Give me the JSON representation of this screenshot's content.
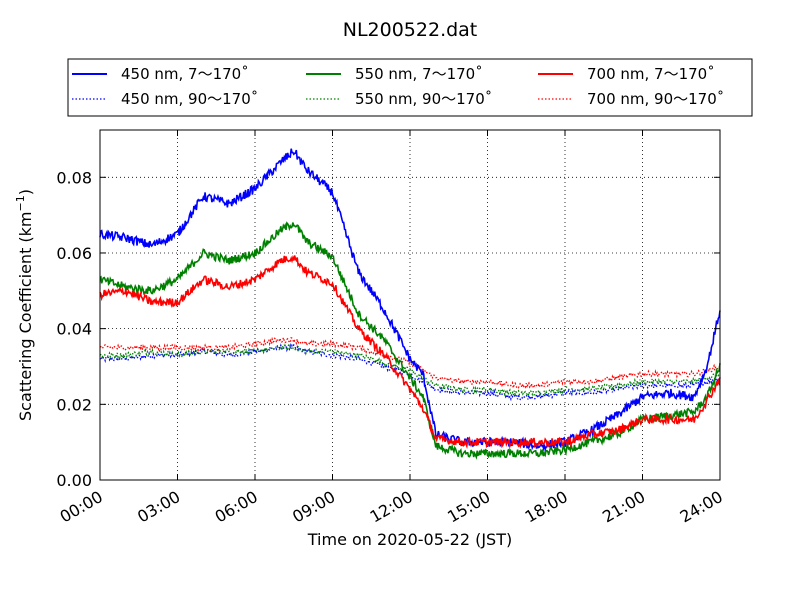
{
  "chart_data": {
    "type": "line",
    "title": "NL200522.dat",
    "xlabel": "Time on 2020-05-22 (JST)",
    "ylabel": "Scattering Coefficient (km",
    "ylabel_sup": "−1",
    "ylabel_close": ")",
    "xlim_hours": [
      0,
      24
    ],
    "ylim": [
      0,
      0.0925
    ],
    "x_ticks": [
      {
        "hour": 0,
        "label": "00:00"
      },
      {
        "hour": 3,
        "label": "03:00"
      },
      {
        "hour": 6,
        "label": "06:00"
      },
      {
        "hour": 9,
        "label": "09:00"
      },
      {
        "hour": 12,
        "label": "12:00"
      },
      {
        "hour": 15,
        "label": "15:00"
      },
      {
        "hour": 18,
        "label": "18:00"
      },
      {
        "hour": 21,
        "label": "21:00"
      },
      {
        "hour": 24,
        "label": "24:00"
      }
    ],
    "y_ticks": [
      {
        "value": 0.0,
        "label": "0.00"
      },
      {
        "value": 0.02,
        "label": "0.02"
      },
      {
        "value": 0.04,
        "label": "0.04"
      },
      {
        "value": 0.06,
        "label": "0.06"
      },
      {
        "value": 0.08,
        "label": "0.08"
      }
    ],
    "grid": true,
    "legend_position": "top",
    "x_hours": [
      0,
      1,
      2,
      3,
      4,
      5,
      6,
      7,
      7.5,
      8,
      9,
      10,
      11,
      12,
      12.5,
      13,
      14,
      15,
      16,
      17,
      18,
      19,
      20,
      21,
      22,
      23,
      23.5,
      24
    ],
    "series": [
      {
        "name": "450 nm, 7～170˚",
        "color": "#0000ff",
        "style": "solid",
        "noise": 0.0012,
        "values": [
          0.065,
          0.064,
          0.062,
          0.065,
          0.075,
          0.073,
          0.077,
          0.084,
          0.087,
          0.082,
          0.076,
          0.055,
          0.045,
          0.032,
          0.028,
          0.012,
          0.01,
          0.01,
          0.01,
          0.009,
          0.01,
          0.013,
          0.017,
          0.022,
          0.023,
          0.022,
          0.03,
          0.045
        ]
      },
      {
        "name": "550 nm, 7～170˚",
        "color": "#008000",
        "style": "solid",
        "noise": 0.0011,
        "values": [
          0.053,
          0.051,
          0.05,
          0.053,
          0.06,
          0.058,
          0.06,
          0.066,
          0.068,
          0.063,
          0.059,
          0.044,
          0.037,
          0.027,
          0.022,
          0.009,
          0.007,
          0.007,
          0.007,
          0.007,
          0.008,
          0.01,
          0.012,
          0.016,
          0.017,
          0.018,
          0.022,
          0.03
        ]
      },
      {
        "name": "700 nm, 7～170˚",
        "color": "#ff0000",
        "style": "solid",
        "noise": 0.0011,
        "values": [
          0.049,
          0.05,
          0.047,
          0.047,
          0.053,
          0.051,
          0.053,
          0.058,
          0.059,
          0.055,
          0.052,
          0.04,
          0.033,
          0.024,
          0.019,
          0.011,
          0.01,
          0.01,
          0.01,
          0.01,
          0.01,
          0.012,
          0.013,
          0.016,
          0.016,
          0.016,
          0.021,
          0.027
        ]
      },
      {
        "name": "450 nm, 90～170˚",
        "color": "#0000ff",
        "style": "dotted",
        "noise": 0.0007,
        "values": [
          0.032,
          0.032,
          0.033,
          0.033,
          0.034,
          0.033,
          0.034,
          0.035,
          0.035,
          0.034,
          0.033,
          0.032,
          0.03,
          0.028,
          0.026,
          0.024,
          0.023,
          0.023,
          0.022,
          0.022,
          0.023,
          0.023,
          0.024,
          0.025,
          0.025,
          0.025,
          0.026,
          0.027
        ]
      },
      {
        "name": "550 nm, 90～170˚",
        "color": "#008000",
        "style": "dotted",
        "noise": 0.0007,
        "values": [
          0.033,
          0.033,
          0.034,
          0.033,
          0.034,
          0.034,
          0.034,
          0.035,
          0.035,
          0.034,
          0.034,
          0.033,
          0.031,
          0.029,
          0.027,
          0.025,
          0.024,
          0.024,
          0.023,
          0.023,
          0.024,
          0.024,
          0.025,
          0.026,
          0.026,
          0.026,
          0.027,
          0.028
        ]
      },
      {
        "name": "700 nm, 90～170˚",
        "color": "#ff0000",
        "style": "dotted",
        "noise": 0.0007,
        "values": [
          0.035,
          0.035,
          0.035,
          0.035,
          0.035,
          0.035,
          0.036,
          0.037,
          0.037,
          0.036,
          0.036,
          0.035,
          0.033,
          0.031,
          0.029,
          0.027,
          0.026,
          0.026,
          0.025,
          0.025,
          0.026,
          0.026,
          0.027,
          0.028,
          0.028,
          0.028,
          0.029,
          0.03
        ]
      }
    ],
    "legend_order": [
      0,
      1,
      2,
      3,
      4,
      5
    ]
  }
}
